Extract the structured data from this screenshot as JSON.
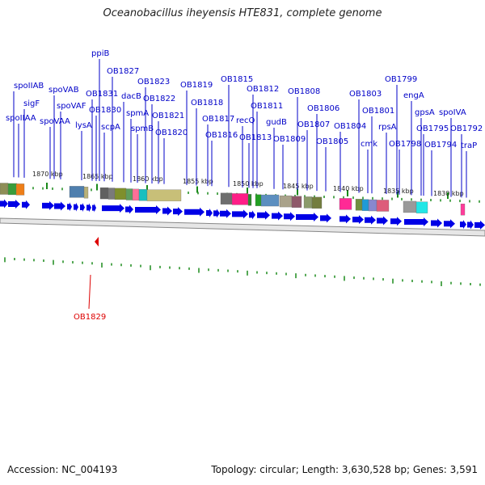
{
  "title": "Oceanobacillus iheyensis HTE831, complete genome",
  "footer": {
    "accession_label": "Accession:",
    "accession": "NC_004193",
    "topology_label": "Topology:",
    "topology": "circular",
    "length_label": "Length:",
    "length": "3,630,528 bp",
    "genes_label": "Genes:",
    "genes": "3,591"
  },
  "kbp_labels": [
    "1870 kbp",
    "1865 kbp",
    "1860 kbp",
    "1855 kbp",
    "1850 kbp",
    "1845 kbp",
    "1840 kbp",
    "1835 kbp",
    "1830 kbp"
  ],
  "gene_labels": [
    "spoIIAB",
    "sigF",
    "spoIIAA",
    "spoVAB",
    "spoVAF",
    "spoVAA",
    "ppiB",
    "OB1831",
    "lysA",
    "OB1830",
    "scpA",
    "OB1827",
    "dacB",
    "spmA",
    "spmB",
    "OB1823",
    "OB1822",
    "OB1821",
    "OB1820",
    "OB1819",
    "OB1818",
    "OB1817",
    "OB1816",
    "OB1815",
    "recQ",
    "OB1813",
    "OB1812",
    "OB1811",
    "gudB",
    "OB1809",
    "OB1808",
    "OB1807",
    "OB1806",
    "OB1805",
    "OB1804",
    "OB1803",
    "cmk",
    "OB1801",
    "rpsA",
    "OB1799",
    "OB1798",
    "engA",
    "gpsA",
    "OB1795",
    "OB1794",
    "spoIVA",
    "OB1792",
    "traP"
  ],
  "red_label": "OB1829",
  "colors": {
    "forward_gene": "#0000e6",
    "label_blue": "#0000c8",
    "marker_red": "#dd0000",
    "tick_green": "#1a8a1a",
    "backbone": "#888888"
  }
}
